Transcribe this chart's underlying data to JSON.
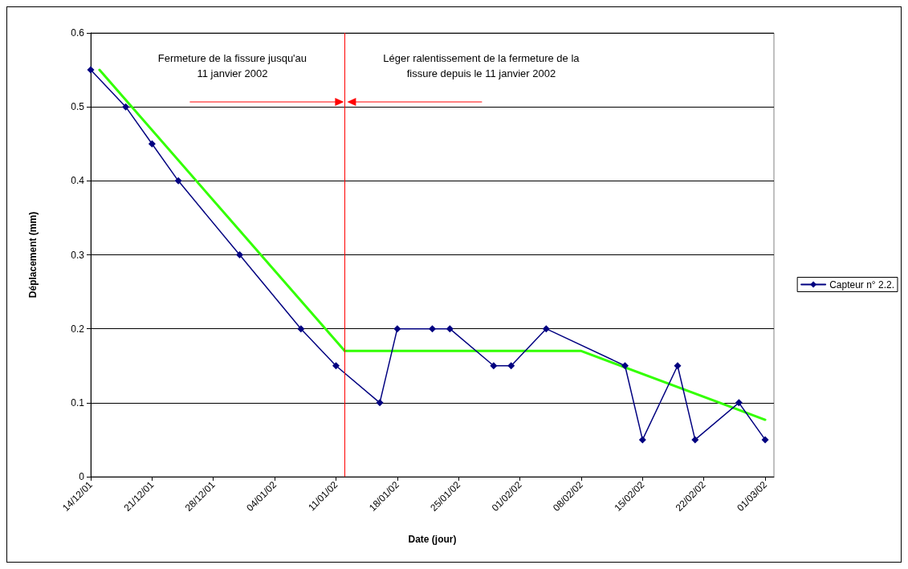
{
  "chart_data": {
    "type": "line",
    "xlabel": "Date (jour)",
    "ylabel": "Déplacement (mm)",
    "xlim": [
      "2001-12-14",
      "2002-03-02"
    ],
    "xticks": [
      {
        "value": "2001-12-14",
        "label": "14/12/01"
      },
      {
        "value": "2001-12-21",
        "label": "21/12/01"
      },
      {
        "value": "2001-12-28",
        "label": "28/12/01"
      },
      {
        "value": "2002-01-04",
        "label": "04/01/02"
      },
      {
        "value": "2002-01-11",
        "label": "11/01/02"
      },
      {
        "value": "2002-01-18",
        "label": "18/01/02"
      },
      {
        "value": "2002-01-25",
        "label": "25/01/02"
      },
      {
        "value": "2002-02-01",
        "label": "01/02/02"
      },
      {
        "value": "2002-02-08",
        "label": "08/02/02"
      },
      {
        "value": "2002-02-15",
        "label": "15/02/02"
      },
      {
        "value": "2002-02-22",
        "label": "22/02/02"
      },
      {
        "value": "2002-03-01",
        "label": "01/03/02"
      }
    ],
    "ylim": [
      0,
      0.6
    ],
    "yticks": [
      0,
      0.1,
      0.2,
      0.3,
      0.4,
      0.5,
      0.6
    ],
    "grid": "y",
    "legend": "right",
    "marker": "diamond",
    "line_style": "solid",
    "series": [
      {
        "name": "Capteur n° 2.2.",
        "color": "#000080",
        "x": [
          "2001-12-14",
          "2001-12-18",
          "2001-12-21",
          "2001-12-24",
          "2001-12-31",
          "2002-01-07",
          "2002-01-11",
          "2002-01-16",
          "2002-01-18",
          "2002-01-22",
          "2002-01-24",
          "2002-01-29",
          "2002-01-31",
          "2002-02-04",
          "2002-02-13",
          "2002-02-15",
          "2002-02-19",
          "2002-02-21",
          "2002-02-26",
          "2002-03-01"
        ],
        "values": [
          0.55,
          0.5,
          0.45,
          0.4,
          0.3,
          0.2,
          0.15,
          0.1,
          0.2,
          0.2,
          0.2,
          0.15,
          0.15,
          0.2,
          0.15,
          0.05,
          0.15,
          0.05,
          0.1,
          0.05
        ]
      },
      {
        "type": "line",
        "color": "#33ff00",
        "marker": "none",
        "x": [
          "2001-12-15",
          "2002-01-12",
          "2002-02-08",
          "2002-03-01"
        ],
        "values": [
          0.55,
          0.17,
          0.17,
          0.077
        ]
      }
    ],
    "ref_lines": [
      {
        "axis": "x",
        "value": "2002-01-12",
        "color": "#ff0000"
      }
    ],
    "annotations": [
      "Fermeture de la fissure jusqu'au\n11 janvier 2002",
      "Léger ralentissement de la fermeture de la\nfissure depuis le 11 janvier 2002"
    ]
  }
}
